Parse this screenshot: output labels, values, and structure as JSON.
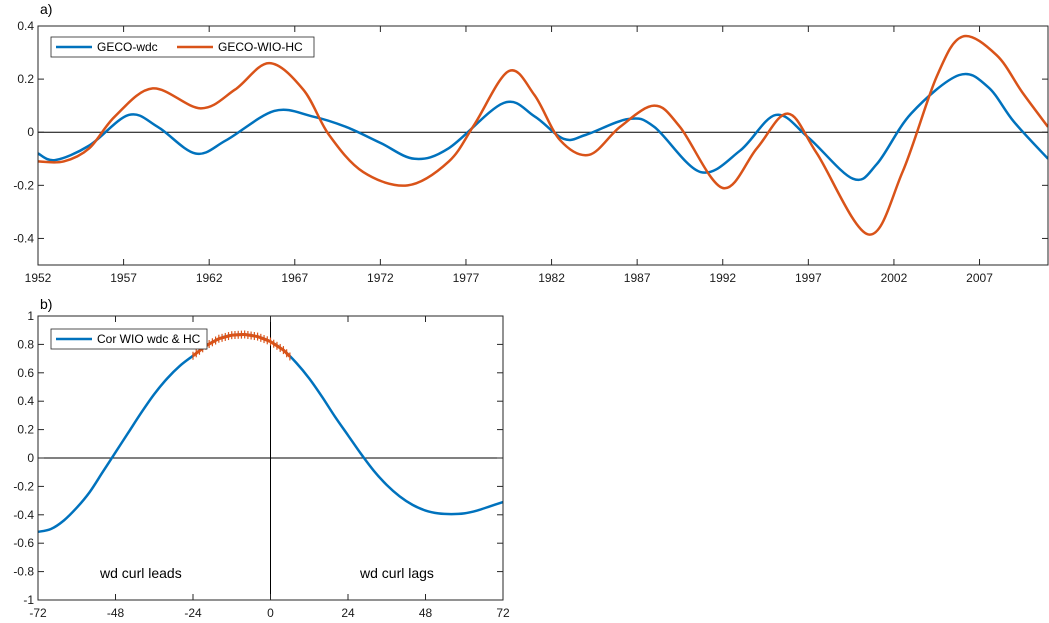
{
  "chart_data": [
    {
      "panel_label": "a)",
      "type": "line",
      "xlim": [
        1952,
        2011
      ],
      "ylim": [
        -0.5,
        0.4
      ],
      "xticks": [
        1952,
        1957,
        1962,
        1967,
        1972,
        1977,
        1982,
        1987,
        1992,
        1997,
        2002,
        2007
      ],
      "yticks": [
        0.4,
        0.2,
        0,
        -0.2,
        -0.4
      ],
      "ytick_labels": [
        "0.4",
        "0.2",
        "0",
        "-0.2",
        "-0.4"
      ],
      "grid": false,
      "legend_placement": "top-left",
      "series": [
        {
          "name": "GECO-wdc",
          "color": "#0072BD",
          "x": [
            1952,
            1953,
            1955,
            1957.3,
            1959,
            1961.2,
            1963,
            1965.8,
            1968,
            1970,
            1972,
            1974,
            1976,
            1979.2,
            1981,
            1982.7,
            1984,
            1986.5,
            1988,
            1990.7,
            1993,
            1995.1,
            1997,
            1999.6,
            2001,
            2003,
            2005.8,
            2007.5,
            2009,
            2011
          ],
          "y": [
            -0.08,
            -0.105,
            -0.05,
            0.065,
            0.02,
            -0.08,
            -0.03,
            0.08,
            0.06,
            0.02,
            -0.04,
            -0.1,
            -0.06,
            0.11,
            0.06,
            -0.025,
            -0.01,
            0.05,
            0.02,
            -0.15,
            -0.07,
            0.065,
            -0.02,
            -0.175,
            -0.12,
            0.07,
            0.215,
            0.17,
            0.04,
            -0.1
          ]
        },
        {
          "name": "GECO-WIO-HC",
          "color": "#D95319",
          "x": [
            1952,
            1953.5,
            1955,
            1956.5,
            1958.7,
            1961.5,
            1963.5,
            1965.5,
            1967.5,
            1969,
            1971,
            1973.6,
            1976,
            1977.5,
            1979.5,
            1981,
            1982.5,
            1984.2,
            1986,
            1988,
            1989.5,
            1992,
            1994,
            1995.8,
            1997.5,
            2000.5,
            2002.5,
            2004.5,
            2006,
            2008,
            2009.5,
            2011
          ],
          "y": [
            -0.11,
            -0.11,
            -0.06,
            0.06,
            0.165,
            0.09,
            0.16,
            0.26,
            0.16,
            -0.01,
            -0.15,
            -0.2,
            -0.11,
            0.03,
            0.23,
            0.14,
            -0.03,
            -0.085,
            0.02,
            0.1,
            0.02,
            -0.21,
            -0.06,
            0.07,
            -0.08,
            -0.385,
            -0.15,
            0.21,
            0.36,
            0.29,
            0.15,
            0.02
          ]
        }
      ]
    },
    {
      "panel_label": "b)",
      "type": "line",
      "xlim": [
        -72,
        72
      ],
      "ylim": [
        -1,
        1
      ],
      "xticks": [
        -72,
        -48,
        -24,
        0,
        24,
        48,
        72
      ],
      "yticks": [
        1,
        0.8,
        0.6,
        0.4,
        0.2,
        0,
        -0.2,
        -0.4,
        -0.6,
        -0.8,
        -1
      ],
      "ytick_labels": [
        "1",
        "0.8",
        "0.6",
        "0.4",
        "0.2",
        "0",
        "-0.2",
        "-0.4",
        "-0.6",
        "-0.8",
        "-1"
      ],
      "grid": false,
      "legend_placement": "top-left",
      "annotations": [
        "wd curl leads",
        "wd curl lags"
      ],
      "significant_range": [
        -24,
        6
      ],
      "significant_color": "#D95319",
      "series": [
        {
          "name": "Cor WIO wdc & HC",
          "color": "#0072BD",
          "x": [
            -72,
            -68,
            -64,
            -60,
            -56,
            -52,
            -48,
            -44,
            -40,
            -36,
            -32,
            -28,
            -24,
            -20,
            -16,
            -12,
            -8,
            -4,
            0,
            4,
            8,
            12,
            16,
            20,
            24,
            28,
            32,
            36,
            40,
            44,
            48,
            52,
            56,
            60,
            64,
            68,
            72
          ],
          "y": [
            -0.52,
            -0.5,
            -0.44,
            -0.35,
            -0.24,
            -0.1,
            0.04,
            0.18,
            0.32,
            0.45,
            0.56,
            0.65,
            0.72,
            0.79,
            0.84,
            0.865,
            0.87,
            0.855,
            0.82,
            0.76,
            0.67,
            0.56,
            0.43,
            0.29,
            0.16,
            0.03,
            -0.09,
            -0.19,
            -0.27,
            -0.33,
            -0.37,
            -0.39,
            -0.395,
            -0.39,
            -0.37,
            -0.34,
            -0.31
          ]
        }
      ]
    }
  ]
}
